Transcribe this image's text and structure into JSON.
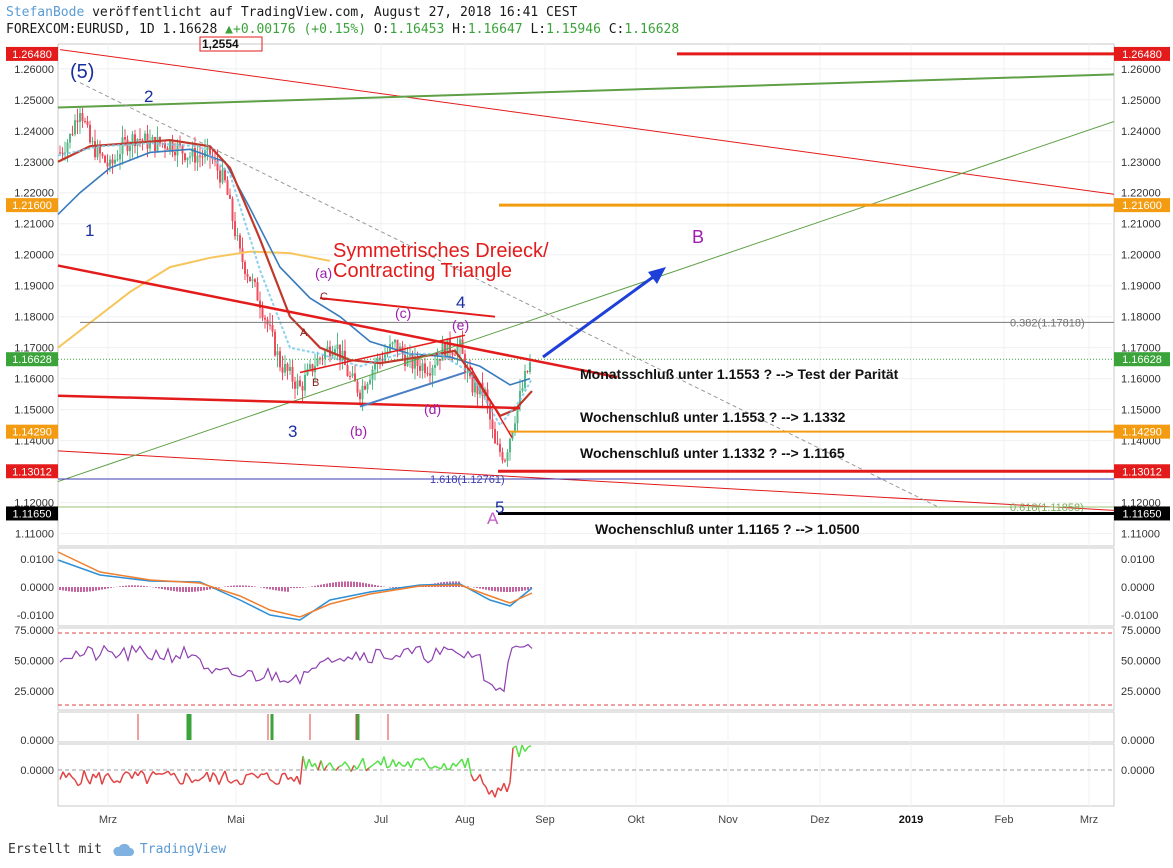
{
  "header": {
    "author": "StefanBode",
    "published": "veröffentlicht auf TradingView.com, August 27, 2018 16:41 CEST",
    "symbol": "FOREXCOM:EURUSD, 1D",
    "price": "1.16628",
    "change": "+0.00176 (+0.15%)",
    "o_label": "O:",
    "o": "1.16453",
    "h_label": "H:",
    "h": "1.16647",
    "l_label": "L:",
    "l": "1.15946",
    "c_label": "C:",
    "c": "1.16628"
  },
  "footer": {
    "created_with": "Erstellt mit",
    "brand": "TradingView"
  },
  "colors": {
    "red": "#e31b1b",
    "orange": "#f39c12",
    "green": "#5fa046",
    "blue": "#1f3fd9",
    "purple": "#a01bb0",
    "navy": "#1a2ea0"
  },
  "chart_data": {
    "type": "candlestick",
    "x_ticks": [
      "Mrz",
      "Mai",
      "Jul",
      "Aug",
      "Sep",
      "Okt",
      "Nov",
      "Dez",
      "2019",
      "Feb",
      "Mrz"
    ],
    "y_ticks": [
      1.26,
      1.25,
      1.24,
      1.23,
      1.22,
      1.21,
      1.2,
      1.19,
      1.18,
      1.17,
      1.16,
      1.15,
      1.14,
      1.12,
      1.11
    ],
    "ylim": [
      1.106,
      1.268
    ],
    "price_badges": [
      {
        "label": "1.26480",
        "value": 1.2648,
        "color": "#e31b1b"
      },
      {
        "label": "1.21600",
        "value": 1.216,
        "color": "#f39c12"
      },
      {
        "label": "1.16628",
        "value": 1.16628,
        "color": "#3aa33a"
      },
      {
        "label": "1.14290",
        "value": 1.1429,
        "color": "#f39c12"
      },
      {
        "label": "1.13012",
        "value": 1.13012,
        "color": "#e31b1b"
      },
      {
        "label": "1.11650",
        "value": 1.1165,
        "color": "#000000"
      }
    ],
    "hlines": [
      {
        "name": "level-1.26480",
        "value": 1.2648,
        "color": "#e31b1b"
      },
      {
        "name": "level-1.21600",
        "value": 1.216,
        "color": "#f39c12"
      },
      {
        "name": "level-1.14290",
        "value": 1.1429,
        "color": "#f39c12"
      },
      {
        "name": "level-1.13012",
        "value": 1.13012,
        "color": "#e31b1b"
      },
      {
        "name": "level-1.11650",
        "value": 1.1165,
        "color": "#000000"
      }
    ],
    "fib_labels": [
      "0.382(1.17818)",
      "1.618(1.12761)",
      "0.618(1.11858)"
    ],
    "title_annotation": [
      "Symmetrisches Dreieck/",
      "Contracting Triangle"
    ],
    "wave_labels": [
      "(5)",
      "1",
      "2",
      "3",
      "4",
      "5",
      "(a)",
      "(b)",
      "(c)",
      "(d)",
      "(e)",
      "A",
      "B",
      "C",
      "A",
      "B"
    ],
    "comments": [
      "Monatsschluß unter 1.1553 ? --> Test der Parität",
      "Wochenschluß unter 1.1553 ? --> 1.1332",
      "Wochenschluß unter 1.1332 ? --> 1.1165",
      "Wochenschluß unter 1.1165 ? --> 1.0500"
    ],
    "hidden_label": "1,2554",
    "macd_ticks": [
      "0.0100",
      "0.0000",
      "-0.0100"
    ],
    "rsi_ticks": [
      "75.0000",
      "50.0000",
      "25.0000"
    ],
    "signal_ticks": [
      "0.0000"
    ],
    "osc_ticks": [
      "0.0000"
    ],
    "grid": true
  }
}
